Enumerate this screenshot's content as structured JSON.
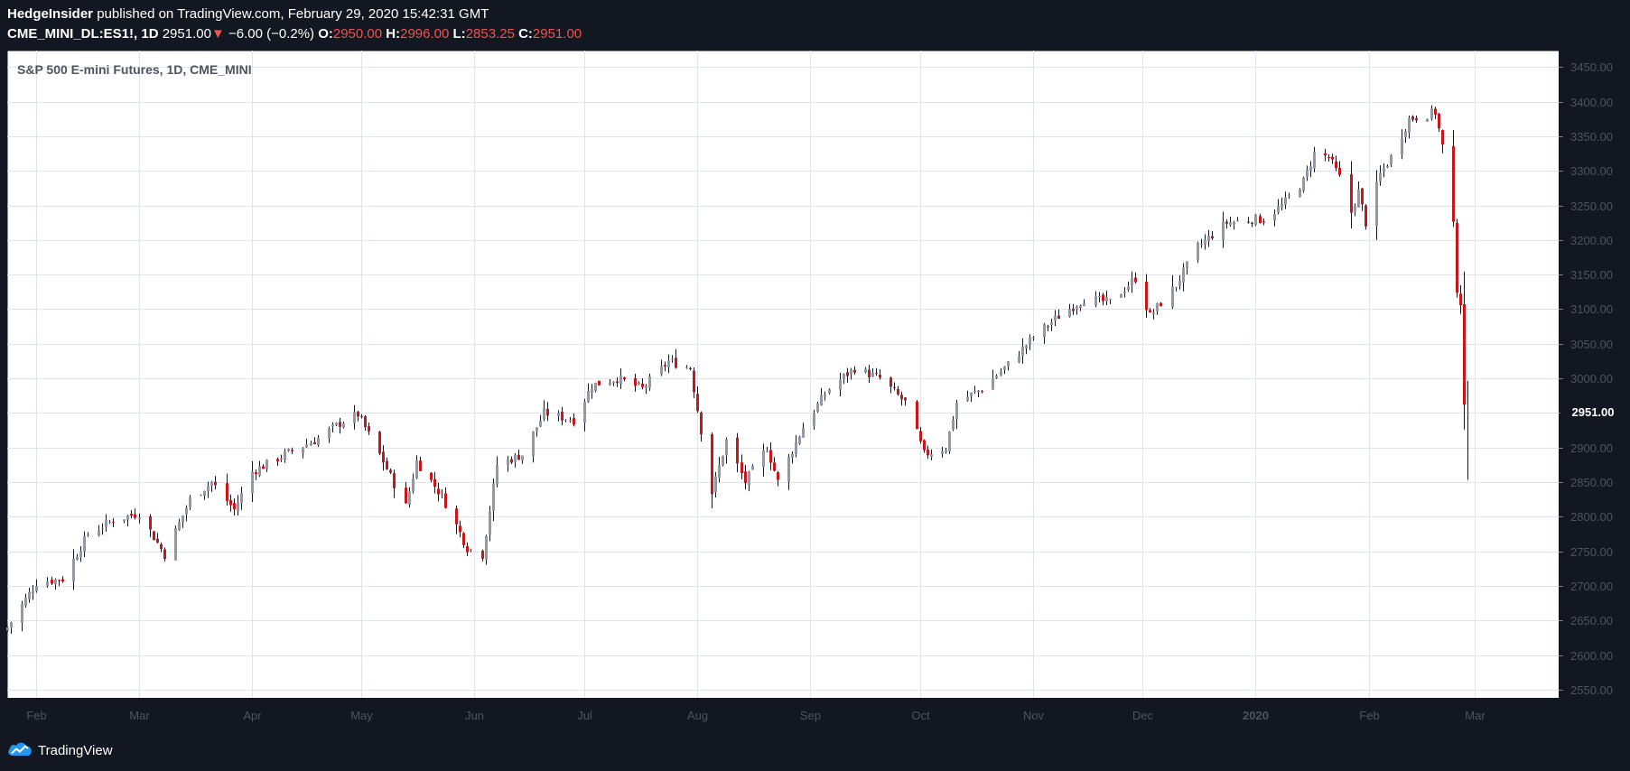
{
  "header": {
    "author": "HedgeInsider",
    "published_text": "published on TradingView.com, February 29, 2020 15:42:31 GMT",
    "symbol": "CME_MINI_DL:ES1!, 1D",
    "last": "2951.00",
    "change_arrow": "▼",
    "change": "−6.00 (−0.2%)",
    "o_label": "O:",
    "o_value": "2950.00",
    "h_label": "H:",
    "h_value": "2996.00",
    "l_label": "L:",
    "l_value": "2853.25",
    "c_label": "C:",
    "c_value": "2951.00"
  },
  "footer": {
    "brand": "TradingView"
  },
  "icons": {
    "logo": "tradingview-cloud-logo-icon"
  },
  "colors": {
    "up": "#9598a1",
    "down": "#c8161d",
    "dark": "#131722",
    "grid": "#e0e3eb"
  },
  "chart_data": {
    "type": "candlestick",
    "title": "S&P 500 E-mini Futures, 1D, CME_MINI",
    "x_tick_labels": [
      "Feb",
      "Mar",
      "Apr",
      "May",
      "Jun",
      "Jul",
      "Aug",
      "Sep",
      "Oct",
      "Nov",
      "Dec",
      "2020",
      "Feb",
      "Mar"
    ],
    "x_tick_dates": [
      "2019-02-01",
      "2019-03-01",
      "2019-04-01",
      "2019-05-01",
      "2019-06-01",
      "2019-07-01",
      "2019-08-01",
      "2019-09-01",
      "2019-10-01",
      "2019-11-01",
      "2019-12-01",
      "2020-01-01",
      "2020-02-01",
      "2020-03-01"
    ],
    "y_ticks": [
      "2550.00",
      "2600.00",
      "2650.00",
      "2700.00",
      "2750.00",
      "2800.00",
      "2850.00",
      "2900.00",
      "2950.00",
      "3000.00",
      "3050.00",
      "3100.00",
      "3150.00",
      "3200.00",
      "3250.00",
      "3300.00",
      "3350.00",
      "3400.00",
      "3450.00"
    ],
    "ylim": [
      2538,
      3474
    ],
    "last_price_label": "2951.00",
    "date_range": [
      "2019-01-24",
      "2020-02-28"
    ],
    "close_anchors": [
      [
        "2019-01-24",
        2640
      ],
      [
        "2019-02-01",
        2705
      ],
      [
        "2019-02-08",
        2710
      ],
      [
        "2019-02-15",
        2775
      ],
      [
        "2019-02-22",
        2795
      ],
      [
        "2019-03-01",
        2805
      ],
      [
        "2019-03-08",
        2745
      ],
      [
        "2019-03-15",
        2825
      ],
      [
        "2019-03-21",
        2850
      ],
      [
        "2019-03-27",
        2810
      ],
      [
        "2019-04-01",
        2865
      ],
      [
        "2019-04-10",
        2890
      ],
      [
        "2019-04-18",
        2910
      ],
      [
        "2019-04-25",
        2935
      ],
      [
        "2019-04-30",
        2948
      ],
      [
        "2019-05-07",
        2880
      ],
      [
        "2019-05-13",
        2815
      ],
      [
        "2019-05-16",
        2880
      ],
      [
        "2019-05-23",
        2830
      ],
      [
        "2019-05-30",
        2755
      ],
      [
        "2019-06-03",
        2745
      ],
      [
        "2019-06-07",
        2875
      ],
      [
        "2019-06-14",
        2890
      ],
      [
        "2019-06-20",
        2950
      ],
      [
        "2019-06-28",
        2940
      ],
      [
        "2019-07-03",
        2990
      ],
      [
        "2019-07-10",
        3000
      ],
      [
        "2019-07-17",
        2985
      ],
      [
        "2019-07-24",
        3025
      ],
      [
        "2019-07-30",
        3015
      ],
      [
        "2019-08-05",
        2835
      ],
      [
        "2019-08-09",
        2910
      ],
      [
        "2019-08-14",
        2850
      ],
      [
        "2019-08-20",
        2900
      ],
      [
        "2019-08-23",
        2850
      ],
      [
        "2019-08-30",
        2930
      ],
      [
        "2019-09-06",
        2985
      ],
      [
        "2019-09-13",
        3015
      ],
      [
        "2019-09-20",
        3000
      ],
      [
        "2019-09-27",
        2965
      ],
      [
        "2019-10-02",
        2890
      ],
      [
        "2019-10-08",
        2900
      ],
      [
        "2019-10-11",
        2965
      ],
      [
        "2019-10-18",
        2985
      ],
      [
        "2019-10-25",
        3020
      ],
      [
        "2019-11-01",
        3060
      ],
      [
        "2019-11-08",
        3090
      ],
      [
        "2019-11-15",
        3115
      ],
      [
        "2019-11-22",
        3110
      ],
      [
        "2019-11-29",
        3145
      ],
      [
        "2019-12-03",
        3090
      ],
      [
        "2019-12-10",
        3135
      ],
      [
        "2019-12-16",
        3190
      ],
      [
        "2019-12-24",
        3225
      ],
      [
        "2019-12-31",
        3230
      ],
      [
        "2020-01-03",
        3230
      ],
      [
        "2020-01-08",
        3250
      ],
      [
        "2020-01-14",
        3285
      ],
      [
        "2020-01-17",
        3325
      ],
      [
        "2020-01-21",
        3320
      ],
      [
        "2020-01-24",
        3290
      ],
      [
        "2020-01-27",
        3240
      ],
      [
        "2020-01-29",
        3270
      ],
      [
        "2020-01-31",
        3225
      ],
      [
        "2020-02-04",
        3295
      ],
      [
        "2020-02-07",
        3320
      ],
      [
        "2020-02-12",
        3375
      ],
      [
        "2020-02-19",
        3385
      ],
      [
        "2020-02-21",
        3335
      ],
      [
        "2020-02-24",
        3220
      ],
      [
        "2020-02-25",
        3130
      ],
      [
        "2020-02-26",
        3110
      ],
      [
        "2020-02-27",
        2955
      ],
      [
        "2020-02-28",
        2951
      ]
    ],
    "last_bar": {
      "open": 2950.0,
      "high": 2996.0,
      "low": 2853.25,
      "close": 2951.0
    },
    "x_range_end": "2020-03-24"
  }
}
